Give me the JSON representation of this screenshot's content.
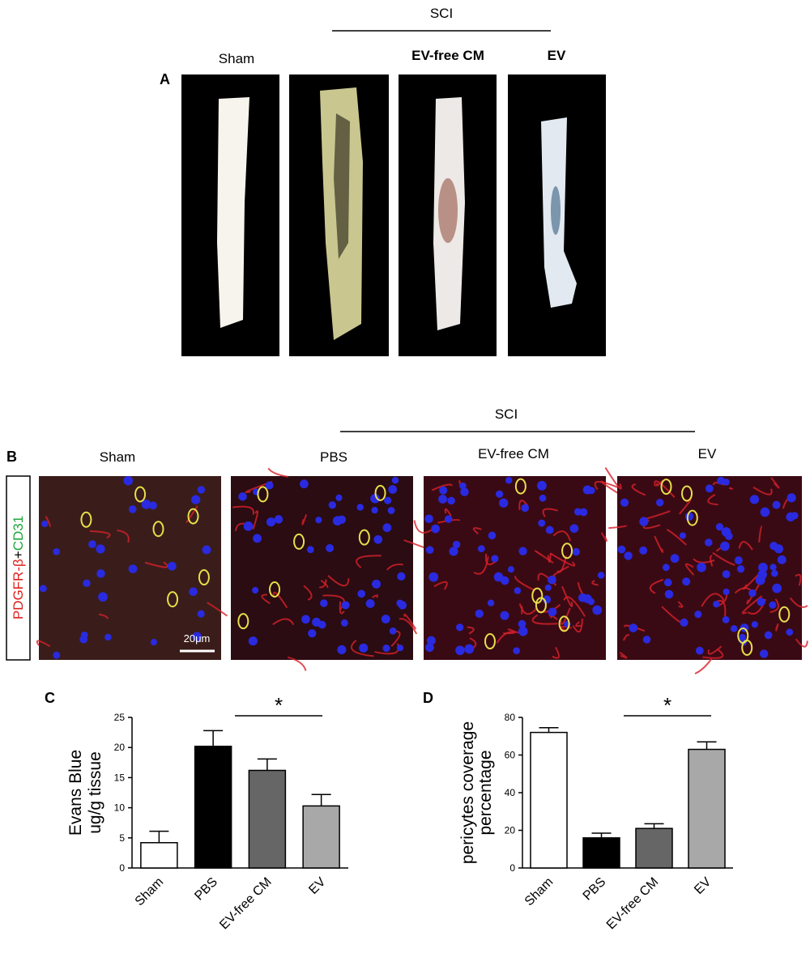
{
  "panel_a": {
    "letter": "A",
    "group": "SCI",
    "labels": [
      "Sham",
      "EV-free CM",
      "EV"
    ]
  },
  "panel_b": {
    "letter": "B",
    "group": "SCI",
    "labels": [
      "Sham",
      "PBS",
      "EV-free CM",
      "EV"
    ],
    "stain_red": "PDGFR-β",
    "stain_plus": "+",
    "stain_green": "CD31",
    "scale_bar": "20μm"
  },
  "chart_data": [
    {
      "type": "bar",
      "panel": "C",
      "ylabel": [
        "Evans Blue",
        "ug/g tissue"
      ],
      "categories": [
        "Sham",
        "PBS",
        "EV-free CM",
        "EV"
      ],
      "values": [
        4.2,
        20.2,
        16.2,
        10.3
      ],
      "errors": [
        1.9,
        2.6,
        1.9,
        1.9
      ],
      "colors": [
        "#ffffff",
        "#000000",
        "#666666",
        "#a8a8a8"
      ],
      "ylim": [
        0,
        25
      ],
      "yticks": [
        0,
        5,
        10,
        15,
        20,
        25
      ],
      "annotation": "*"
    },
    {
      "type": "bar",
      "panel": "D",
      "ylabel": [
        "pericytes coverage",
        "percentage"
      ],
      "categories": [
        "Sham",
        "PBS",
        "EV-free CM",
        "EV"
      ],
      "values": [
        72,
        16,
        21,
        63
      ],
      "errors": [
        2.5,
        2.5,
        2.5,
        4
      ],
      "colors": [
        "#ffffff",
        "#000000",
        "#666666",
        "#a8a8a8"
      ],
      "ylim": [
        0,
        80
      ],
      "yticks": [
        0,
        20,
        40,
        60,
        80
      ],
      "annotation": "*"
    }
  ]
}
